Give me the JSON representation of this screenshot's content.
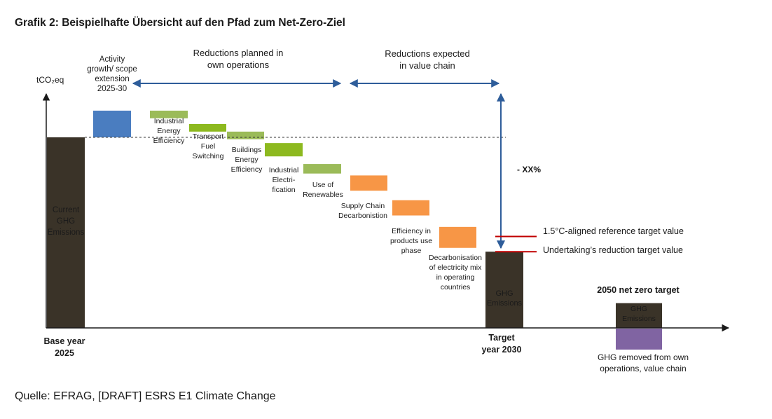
{
  "title": "Grafik 2: Beispielhafte Übersicht auf den Pfad zum Net-Zero-Ziel",
  "source": "Quelle: EFRAG, [DRAFT] ESRS E1 Climate Change",
  "chart_data": {
    "type": "waterfall",
    "ylabel": "tCO₂eq",
    "x_labels": {
      "base": [
        "Base year",
        "2025"
      ],
      "target": [
        "Target",
        "year 2030"
      ],
      "netzero": "2050 net zero target"
    },
    "headers": {
      "own_operations": [
        "Reductions planned in",
        "own operations"
      ],
      "value_chain": [
        "Reductions expected",
        "in value chain"
      ]
    },
    "reduction_annotation": "- XX%",
    "base_bar": {
      "label": [
        "Current",
        "GHG",
        "Emissions"
      ],
      "value": 100,
      "color": "#3a3328"
    },
    "steps": [
      {
        "label": [
          "Activity",
          "growth/ scope",
          "extension",
          "2025-30"
        ],
        "from": 100,
        "to": 114,
        "color": "#4a7dc0",
        "group": "growth"
      },
      {
        "label": [
          "Industrial",
          "Energy",
          "Efficiency"
        ],
        "from": 114,
        "to": 110,
        "color": "#9bbb59",
        "group": "own"
      },
      {
        "label": [
          "Transport",
          "Fuel",
          "Switching"
        ],
        "from": 107,
        "to": 103,
        "color": "#8db91f",
        "group": "own"
      },
      {
        "label": [
          "Buildings",
          "Energy",
          "Efficiency"
        ],
        "from": 103,
        "to": 99,
        "color": "#9bbb59",
        "group": "own"
      },
      {
        "label": [
          "Industrial",
          "Electri-",
          "fication"
        ],
        "from": 97,
        "to": 90,
        "color": "#8db91f",
        "group": "own"
      },
      {
        "label": [
          "Use of",
          "Renewables"
        ],
        "from": 86,
        "to": 81,
        "color": "#9bbb59",
        "group": "own"
      },
      {
        "label": [
          "Supply Chain",
          "Decarbonistion"
        ],
        "from": 80,
        "to": 72,
        "color": "#f79646",
        "group": "value"
      },
      {
        "label": [
          "Efficiency in",
          "products use",
          "phase"
        ],
        "from": 67,
        "to": 59,
        "color": "#f79646",
        "group": "value"
      },
      {
        "label": [
          "Decarbonisation",
          "of electricity mix",
          "in operating",
          "countries"
        ],
        "from": 53,
        "to": 42,
        "color": "#f79646",
        "group": "value"
      }
    ],
    "target_bar": {
      "label": [
        "GHG",
        "Emissions"
      ],
      "value": 40,
      "color": "#3a3328"
    },
    "reference_lines": [
      {
        "label": "1.5°C-aligned reference target value",
        "value": 48,
        "color": "#c00000"
      },
      {
        "label": "Undertaking’s reduction target value",
        "value": 40,
        "color": "#c00000"
      }
    ],
    "netzero_bars": {
      "emissions": {
        "label": [
          "GHG",
          "Emissions"
        ],
        "value": 13,
        "color": "#3a3328"
      },
      "removed": {
        "label": [
          "GHG removed  from own",
          "operations, value chain"
        ],
        "value": -11,
        "color": "#8064a2"
      }
    }
  }
}
